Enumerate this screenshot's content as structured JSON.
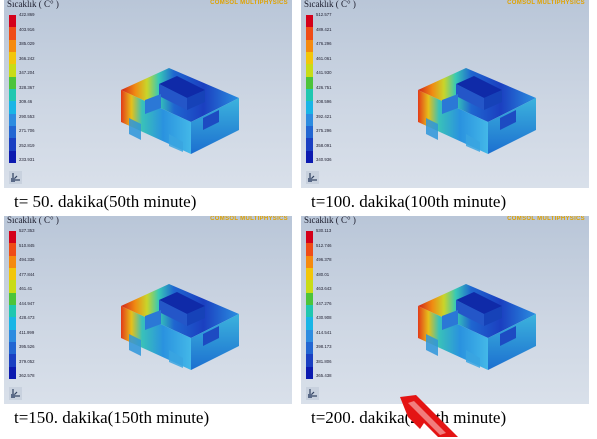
{
  "panels": [
    {
      "title": "Sıcaklık ( C° )",
      "brand": "COMSOL MULTIPHYSICS",
      "scale_ticks": [
        "422.869",
        "403.916",
        "385.029",
        "366.242",
        "347.204",
        "328.367",
        "309.46",
        "290.553",
        "271.706",
        "252.819",
        "233.931"
      ],
      "caption": "t= 50. dakika(50th minute)"
    },
    {
      "title": "Sıcaklık ( C° )",
      "brand": "COMSOL MULTIPHYSICS",
      "scale_ticks": [
        "512.577",
        "489.421",
        "476.296",
        "461.061",
        "441.930",
        "426.751",
        "408.596",
        "392.421",
        "375.296",
        "358.091",
        "340.936"
      ],
      "caption": "t=100. dakika(100th minute)"
    },
    {
      "title": "Sıcaklık ( C° )",
      "brand": "COMSOL MULTIPHYSICS",
      "scale_ticks": [
        "527.353",
        "510.845",
        "494.336",
        "477.844",
        "461.41",
        "444.947",
        "428.473",
        "411.999",
        "395.526",
        "379.052",
        "362.578"
      ],
      "caption": "t=150. dakika(150th minute)"
    },
    {
      "title": "Sıcaklık ( C° )",
      "brand": "COMSOL MULTIPHYSICS",
      "scale_ticks": [
        "530.113",
        "512.746",
        "496.378",
        "480.01",
        "463.643",
        "447.276",
        "430.908",
        "414.541",
        "398.173",
        "381.806",
        "365.438"
      ],
      "caption": "t=200. dakika(200th minute)"
    }
  ],
  "colors": {
    "scale": [
      "#d4001a",
      "#ef4c17",
      "#f58a0e",
      "#f2c60b",
      "#c8dc16",
      "#4cc43a",
      "#1fc7b0",
      "#19b5e6",
      "#2d8ce0",
      "#2366d2",
      "#1a3fc2",
      "#0c1ab0"
    ],
    "caption_text": "#000000",
    "brand_text": "#e0a200"
  },
  "icons": [
    "axis-triad-icon",
    "red-arrow-icon"
  ]
}
